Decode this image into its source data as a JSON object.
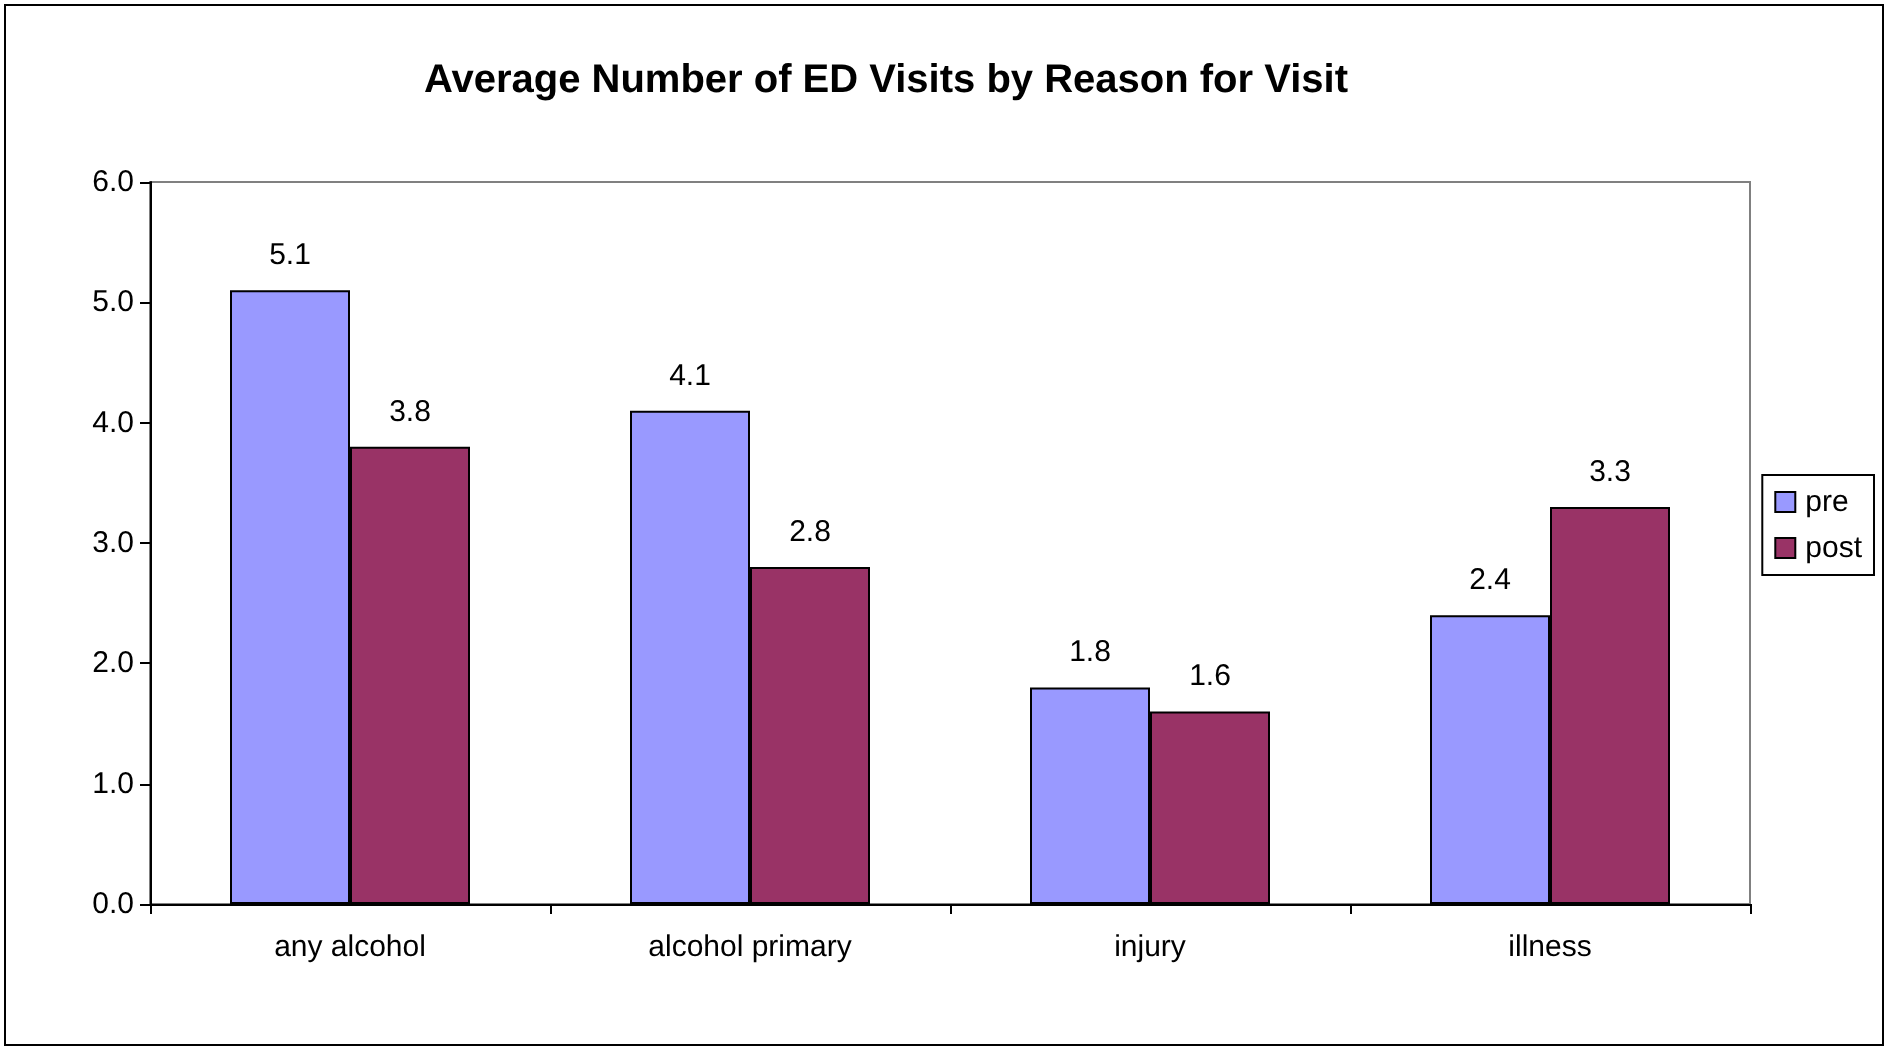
{
  "chart_data": {
    "type": "bar",
    "title": "Average Number of ED Visits by Reason for Visit",
    "categories": [
      "any alcohol",
      "alcohol primary",
      "injury",
      "illness"
    ],
    "series": [
      {
        "name": "pre",
        "color": "#9999ff",
        "values": [
          5.1,
          4.1,
          1.8,
          2.4
        ]
      },
      {
        "name": "post",
        "color": "#993366",
        "values": [
          3.8,
          2.8,
          1.6,
          3.3
        ]
      }
    ],
    "ylim": [
      0,
      6
    ],
    "yticks": [
      {
        "value": 0,
        "label": "0.0"
      },
      {
        "value": 1,
        "label": "1.0"
      },
      {
        "value": 2,
        "label": "2.0"
      },
      {
        "value": 3,
        "label": "3.0"
      },
      {
        "value": 4,
        "label": "4.0"
      },
      {
        "value": 5,
        "label": "5.0"
      },
      {
        "value": 6,
        "label": "6.0"
      }
    ],
    "data_labels": true,
    "grid": false,
    "legend": "right"
  }
}
